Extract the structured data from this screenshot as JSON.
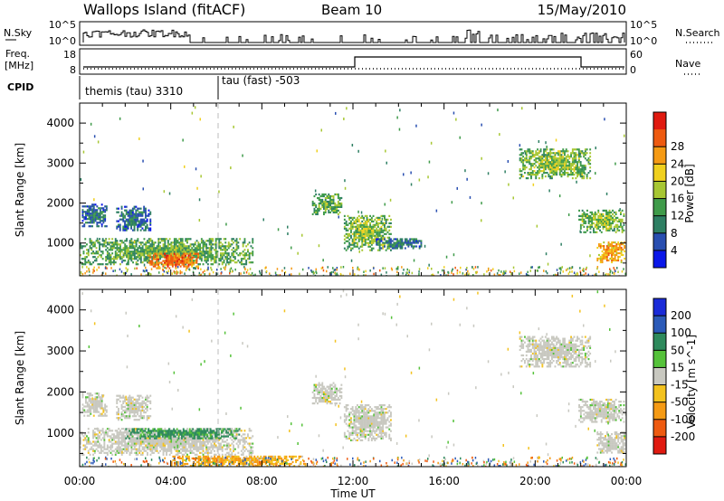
{
  "header": {
    "station": "Wallops Island (fitACF)",
    "beam": "Beam 10",
    "date": "15/May/2010"
  },
  "strip": {
    "nsky_label": "N.Sky",
    "nsearch_label": "N.Search",
    "freq_label_1": "Freq.",
    "freq_label_2": "[MHz]",
    "nave_label": "Nave",
    "cpid_label": "CPID",
    "nsky_ticks": [
      "10^5",
      "10^0"
    ],
    "nsearch_ticks": [
      "10^5",
      "10^0"
    ],
    "freq_ticks": [
      "18",
      "8"
    ],
    "nave_ticks": [
      "60",
      "0"
    ],
    "cpid_segments": [
      "themis (tau) 3310",
      "tau (fast) -503"
    ]
  },
  "chart_data": [
    {
      "type": "heatmap",
      "panel": "power",
      "xlabel": "Time UT",
      "ylabel": "Slant Range [km]",
      "x_ticks": [
        "00:00",
        "04:00",
        "08:00",
        "12:00",
        "16:00",
        "20:00",
        "00:00"
      ],
      "xlim_hours": [
        0,
        24
      ],
      "y_ticks": [
        1000,
        2000,
        3000,
        4000
      ],
      "ylim": [
        180,
        4500
      ],
      "colorbar_label": "Power [dB]",
      "colorbar_ticks": [
        4,
        8,
        12,
        16,
        20,
        24,
        28
      ],
      "colorbar_colors": [
        "#0a17e8",
        "#284eb0",
        "#2e7f63",
        "#3f9b4a",
        "#a7c733",
        "#f0d01e",
        "#f59a14",
        "#ee5a10",
        "#e01a10"
      ],
      "regions": [
        {
          "t": [
            0.0,
            7.6
          ],
          "r": [
            450,
            1100
          ],
          "level": 14
        },
        {
          "t": [
            3.0,
            5.2
          ],
          "r": [
            350,
            750
          ],
          "level": 28
        },
        {
          "t": [
            0.1,
            1.2
          ],
          "r": [
            1400,
            1950
          ],
          "level": 8
        },
        {
          "t": [
            1.6,
            3.1
          ],
          "r": [
            1300,
            1900
          ],
          "level": 8
        },
        {
          "t": [
            10.2,
            11.5
          ],
          "r": [
            1700,
            2200
          ],
          "level": 14
        },
        {
          "t": [
            11.6,
            13.7
          ],
          "r": [
            800,
            1700
          ],
          "level": 16
        },
        {
          "t": [
            13.0,
            15.0
          ],
          "r": [
            850,
            1100
          ],
          "level": 8
        },
        {
          "t": [
            19.3,
            22.4
          ],
          "r": [
            2600,
            3350
          ],
          "level": 16
        },
        {
          "t": [
            21.9,
            23.9
          ],
          "r": [
            1250,
            1800
          ],
          "level": 16
        },
        {
          "t": [
            22.7,
            23.9
          ],
          "r": [
            500,
            1000
          ],
          "level": 24
        }
      ]
    },
    {
      "type": "heatmap",
      "panel": "velocity",
      "xlabel": "Time UT",
      "ylabel": "Slant Range [km]",
      "x_ticks": [
        "00:00",
        "04:00",
        "08:00",
        "12:00",
        "16:00",
        "20:00",
        "00:00"
      ],
      "xlim_hours": [
        0,
        24
      ],
      "y_ticks": [
        1000,
        2000,
        3000,
        4000
      ],
      "ylim": [
        180,
        4500
      ],
      "colorbar_label": "Velocity [m s^-1]",
      "colorbar_ticks": [
        "200",
        "100",
        "50",
        "15",
        "-15",
        "-50",
        "-100",
        "-200"
      ],
      "colorbar_colors": [
        "#1a2bd8",
        "#2b5ab8",
        "#2e8a5c",
        "#55c23a",
        "#c8c8c0",
        "#f3c21e",
        "#f59a14",
        "#ee5a10",
        "#e01a10"
      ],
      "regions": [
        {
          "t": [
            0.0,
            7.6
          ],
          "r": [
            450,
            1100
          ],
          "v": 0
        },
        {
          "t": [
            2.0,
            7.0
          ],
          "r": [
            850,
            1100
          ],
          "v": 40
        },
        {
          "t": [
            0.1,
            1.2
          ],
          "r": [
            1400,
            1950
          ],
          "v": 0
        },
        {
          "t": [
            1.6,
            3.1
          ],
          "r": [
            1300,
            1900
          ],
          "v": 0
        },
        {
          "t": [
            10.2,
            11.5
          ],
          "r": [
            1700,
            2200
          ],
          "v": 0
        },
        {
          "t": [
            11.6,
            13.7
          ],
          "r": [
            800,
            1700
          ],
          "v": 0
        },
        {
          "t": [
            19.3,
            22.4
          ],
          "r": [
            2600,
            3350
          ],
          "v": 0
        },
        {
          "t": [
            21.9,
            23.9
          ],
          "r": [
            1250,
            1800
          ],
          "v": 0
        },
        {
          "t": [
            22.7,
            23.9
          ],
          "r": [
            500,
            1000
          ],
          "v": 0
        },
        {
          "t": [
            4.0,
            10.0
          ],
          "r": [
            180,
            450
          ],
          "v": -30
        }
      ]
    }
  ]
}
